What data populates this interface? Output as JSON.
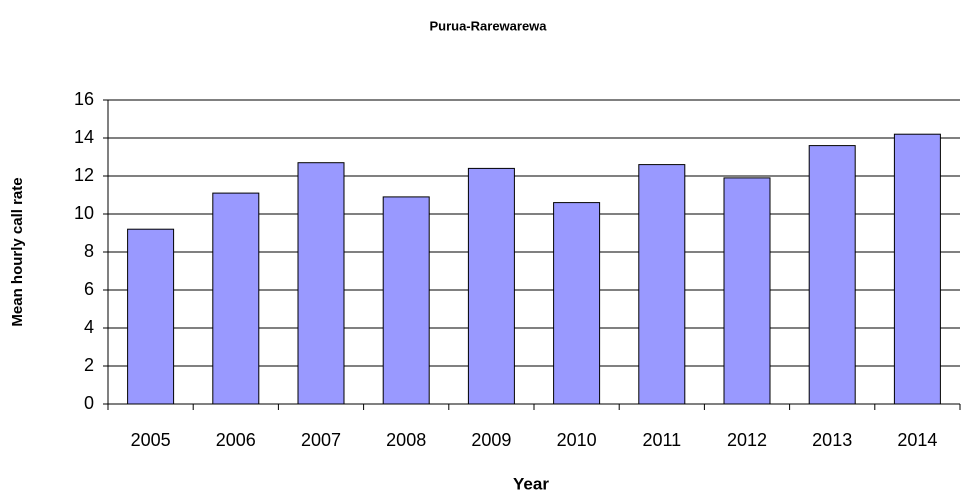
{
  "chart_data": {
    "type": "bar",
    "title": "Purua-Rarewarewa",
    "x_label": "Year",
    "y_label": "Mean hourly call rate",
    "categories": [
      "2005",
      "2006",
      "2007",
      "2008",
      "2009",
      "2010",
      "2011",
      "2012",
      "2013",
      "2014"
    ],
    "values": [
      9.2,
      11.1,
      12.7,
      10.9,
      12.4,
      10.6,
      12.6,
      11.9,
      13.6,
      14.2
    ],
    "color": "#9999ff",
    "ylim": [
      0,
      16
    ],
    "yticks": [
      0,
      2,
      4,
      6,
      8,
      10,
      12,
      14,
      16
    ],
    "grid": true
  }
}
